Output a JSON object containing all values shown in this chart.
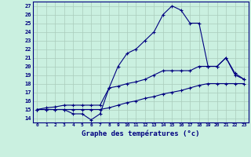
{
  "title": "Graphe des températures (°c)",
  "bg_color": "#caf0e0",
  "line_color": "#000080",
  "axis_color": "#000080",
  "grid_color": "#aaccbb",
  "hours": [
    0,
    1,
    2,
    3,
    4,
    5,
    6,
    7,
    8,
    9,
    10,
    11,
    12,
    13,
    14,
    15,
    16,
    17,
    18,
    19,
    20,
    21,
    22,
    23
  ],
  "temp_curve": [
    15.0,
    15.0,
    15.0,
    15.0,
    14.5,
    14.5,
    13.8,
    14.5,
    17.5,
    20.0,
    21.5,
    22.0,
    23.0,
    24.0,
    26.0,
    27.0,
    26.5,
    25.0,
    25.0,
    20.0,
    20.0,
    21.0,
    19.0,
    18.5
  ],
  "line_max": [
    15.0,
    15.2,
    15.3,
    15.5,
    15.5,
    15.5,
    15.5,
    15.5,
    17.5,
    17.7,
    18.0,
    18.2,
    18.5,
    19.0,
    19.5,
    19.5,
    19.5,
    19.5,
    20.0,
    20.0,
    20.0,
    21.0,
    19.2,
    18.5
  ],
  "line_min": [
    15.0,
    15.0,
    15.0,
    15.0,
    15.0,
    15.0,
    15.0,
    15.0,
    15.2,
    15.5,
    15.8,
    16.0,
    16.3,
    16.5,
    16.8,
    17.0,
    17.2,
    17.5,
    17.8,
    18.0,
    18.0,
    18.0,
    18.0,
    18.0
  ],
  "yticks": [
    14,
    15,
    16,
    17,
    18,
    19,
    20,
    21,
    22,
    23,
    24,
    25,
    26,
    27
  ],
  "ylim": [
    13.5,
    27.5
  ],
  "xlim": [
    -0.5,
    23.5
  ]
}
